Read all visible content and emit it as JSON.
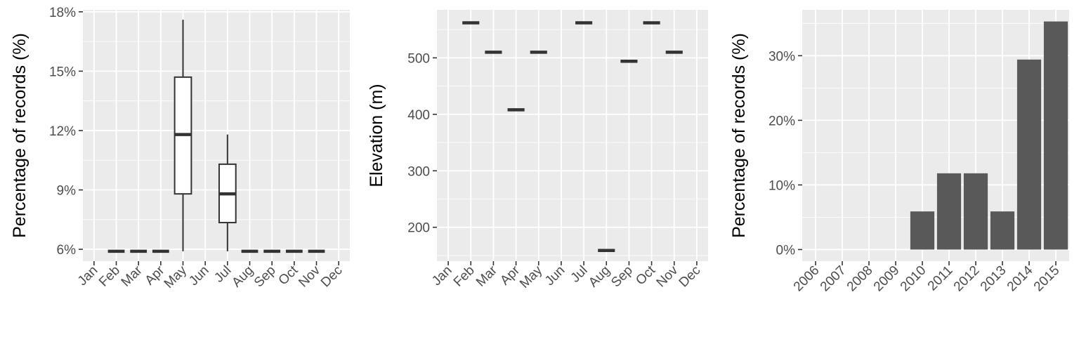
{
  "chart_data": [
    {
      "type": "boxplot",
      "ylabel": "Percentage of records (%)",
      "xlabel": "",
      "categories": [
        "Jan",
        "Feb",
        "Mar",
        "Apr",
        "May",
        "Jun",
        "Jul",
        "Aug",
        "Sep",
        "Oct",
        "Nov",
        "Dec"
      ],
      "y_ticks": [
        6,
        9,
        12,
        15,
        18
      ],
      "y_tick_labels": [
        "6%",
        "9%",
        "12%",
        "15%",
        "18%"
      ],
      "ylim": [
        5.4,
        18.1
      ],
      "boxes": [
        {
          "category": "Feb",
          "min": 5.9,
          "q1": 5.9,
          "median": 5.9,
          "q3": 5.9,
          "max": 5.9
        },
        {
          "category": "Mar",
          "min": 5.9,
          "q1": 5.9,
          "median": 5.9,
          "q3": 5.9,
          "max": 5.9
        },
        {
          "category": "Apr",
          "min": 5.9,
          "q1": 5.9,
          "median": 5.9,
          "q3": 5.9,
          "max": 5.9
        },
        {
          "category": "May",
          "min": 5.9,
          "q1": 8.8,
          "median": 11.8,
          "q3": 14.7,
          "max": 17.6
        },
        {
          "category": "Jul",
          "min": 5.9,
          "q1": 7.35,
          "median": 8.8,
          "q3": 10.3,
          "max": 11.8
        },
        {
          "category": "Aug",
          "min": 5.9,
          "q1": 5.9,
          "median": 5.9,
          "q3": 5.9,
          "max": 5.9
        },
        {
          "category": "Sep",
          "min": 5.9,
          "q1": 5.9,
          "median": 5.9,
          "q3": 5.9,
          "max": 5.9
        },
        {
          "category": "Oct",
          "min": 5.9,
          "q1": 5.9,
          "median": 5.9,
          "q3": 5.9,
          "max": 5.9
        },
        {
          "category": "Nov",
          "min": 5.9,
          "q1": 5.9,
          "median": 5.9,
          "q3": 5.9,
          "max": 5.9
        }
      ],
      "grid": true
    },
    {
      "type": "boxplot",
      "ylabel": "Elevation (m)",
      "xlabel": "",
      "categories": [
        "Jan",
        "Feb",
        "Mar",
        "Apr",
        "May",
        "Jun",
        "Jul",
        "Aug",
        "Sep",
        "Oct",
        "Nov",
        "Dec"
      ],
      "y_ticks": [
        200,
        300,
        400,
        500
      ],
      "y_tick_labels": [
        "200",
        "300",
        "400",
        "500"
      ],
      "ylim": [
        140,
        585
      ],
      "boxes": [
        {
          "category": "Feb",
          "min": 562,
          "q1": 562,
          "median": 562,
          "q3": 562,
          "max": 562
        },
        {
          "category": "Mar",
          "min": 510,
          "q1": 510,
          "median": 510,
          "q3": 510,
          "max": 510
        },
        {
          "category": "Apr",
          "min": 408,
          "q1": 408,
          "median": 408,
          "q3": 408,
          "max": 408
        },
        {
          "category": "May",
          "min": 510,
          "q1": 510,
          "median": 510,
          "q3": 510,
          "max": 510
        },
        {
          "category": "Jul",
          "min": 562,
          "q1": 562,
          "median": 562,
          "q3": 562,
          "max": 562
        },
        {
          "category": "Aug",
          "min": 159,
          "q1": 159,
          "median": 159,
          "q3": 159,
          "max": 159
        },
        {
          "category": "Sep",
          "min": 494,
          "q1": 494,
          "median": 494,
          "q3": 494,
          "max": 494
        },
        {
          "category": "Oct",
          "min": 562,
          "q1": 562,
          "median": 562,
          "q3": 562,
          "max": 562
        },
        {
          "category": "Nov",
          "min": 510,
          "q1": 510,
          "median": 510,
          "q3": 510,
          "max": 510
        }
      ],
      "grid": true
    },
    {
      "type": "bar",
      "ylabel": "Percentage of records (%)",
      "xlabel": "",
      "categories": [
        "2006",
        "2007",
        "2008",
        "2009",
        "2010",
        "2011",
        "2012",
        "2013",
        "2014",
        "2015"
      ],
      "values": [
        0,
        0,
        0,
        0,
        5.9,
        11.8,
        11.8,
        5.9,
        29.4,
        35.3
      ],
      "y_ticks": [
        0,
        10,
        20,
        30
      ],
      "y_tick_labels": [
        "0%",
        "10%",
        "20%",
        "30%"
      ],
      "ylim": [
        -1.8,
        37.1
      ],
      "bar_color": "#595959",
      "grid": true
    }
  ],
  "colors": {
    "panel_background": "#ebebeb",
    "grid_line": "#ffffff",
    "box_line": "#333333",
    "tick_text": "#4d4d4d",
    "axis_title": "#000000"
  }
}
